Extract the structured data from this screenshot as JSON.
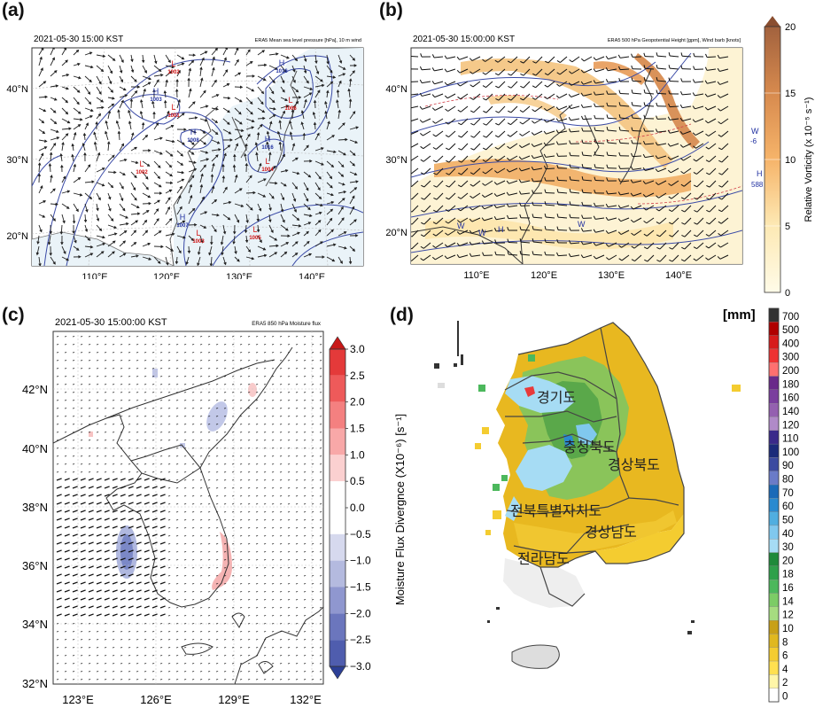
{
  "panels": {
    "a": {
      "label": "(a)",
      "time": "2021-05-30 15:00 KST",
      "desc": "ERA5 Mean sea level pressure [hPa], 10 m wind",
      "lat_ticks": [
        "40°N",
        "30°N",
        "20°N"
      ],
      "lon_ticks": [
        "110°E",
        "120°E",
        "130°E",
        "140°E"
      ],
      "centers": [
        {
          "t": "L",
          "v": "1002",
          "color": "#d01010"
        },
        {
          "t": "H",
          "v": "1003",
          "color": "#2030a0"
        },
        {
          "t": "L",
          "v": "1001",
          "color": "#d01010"
        },
        {
          "t": "H",
          "v": "1008",
          "color": "#2030a0"
        },
        {
          "t": "L",
          "v": "1002",
          "color": "#d01010"
        },
        {
          "t": "H",
          "v": "1016",
          "color": "#2030a0"
        },
        {
          "t": "L",
          "v": "1006",
          "color": "#d01010"
        },
        {
          "t": "H",
          "v": "1016",
          "color": "#2030a0"
        },
        {
          "t": "L",
          "v": "1004",
          "color": "#d01010"
        },
        {
          "t": "H",
          "v": "1007",
          "color": "#2030a0"
        },
        {
          "t": "L",
          "v": "1003",
          "color": "#d01010"
        },
        {
          "t": "L",
          "v": "1005",
          "color": "#d01010"
        }
      ]
    },
    "b": {
      "label": "(b)",
      "time": "2021-05-30 15:00:00 KST",
      "desc": "ERA5 500 hPa Geopotential Height [gpm], Wind barb [knots]",
      "lat_ticks": [
        "40°N",
        "30°N",
        "20°N"
      ],
      "lon_ticks": [
        "110°E",
        "120°E",
        "130°E",
        "140°E"
      ],
      "colorbar": {
        "label": "Relative Vorticity (x 10⁻⁵ s⁻¹)",
        "ticks": [
          "20",
          "15",
          "10",
          "5",
          "0"
        ]
      },
      "side_labels": [
        "W",
        "-6",
        "H",
        "588"
      ],
      "w_labels": [
        "W",
        "W",
        "H",
        "W"
      ]
    },
    "c": {
      "label": "(c)",
      "time": "2021-05-30 15:00:00 KST",
      "desc": "ERA5 850 hPa Moisture flux",
      "lat_ticks": [
        "42°N",
        "40°N",
        "38°N",
        "36°N",
        "34°N",
        "32°N"
      ],
      "lon_ticks": [
        "123°E",
        "126°E",
        "129°E",
        "132°E"
      ],
      "colorbar": {
        "label": "Moisture Flux Divergnce (X10⁻⁶) [s⁻¹]",
        "ticks": [
          "3.0",
          "2.5",
          "2.0",
          "1.5",
          "1.0",
          "0.5",
          "0.0",
          "−0.5",
          "−1.0",
          "−1.5",
          "−2.0",
          "−2.5",
          "−3.0"
        ]
      }
    },
    "d": {
      "label": "(d)",
      "unit": "[mm]",
      "regions": [
        "경기도",
        "충청북도",
        "경상북도",
        "전북특별자치도",
        "경상남도",
        "전라남도"
      ],
      "colorbar_ticks": [
        "700",
        "500",
        "400",
        "300",
        "200",
        "180",
        "160",
        "140",
        "120",
        "110",
        "100",
        "90",
        "80",
        "70",
        "60",
        "50",
        "40",
        "30",
        "20",
        "18",
        "16",
        "14",
        "12",
        "10",
        "8",
        "6",
        "4",
        "2",
        "0"
      ],
      "colorbar_colors": [
        "#333333",
        "#b00000",
        "#d71c1c",
        "#ee3333",
        "#ff7070",
        "#6a2a8a",
        "#7a3e9e",
        "#9460b0",
        "#b08ac8",
        "#3a2a8a",
        "#1b2b7a",
        "#3b4aa0",
        "#6a7bc8",
        "#1a6ab8",
        "#2a8ad0",
        "#50aee0",
        "#80c8ee",
        "#a6dcf4",
        "#1e8a3a",
        "#2ea04a",
        "#4cb85c",
        "#7ccc66",
        "#a6dc80",
        "#c8a018",
        "#e0b820",
        "#f4cc30",
        "#ffe050",
        "#fff6a8",
        "#ffffff"
      ]
    }
  }
}
